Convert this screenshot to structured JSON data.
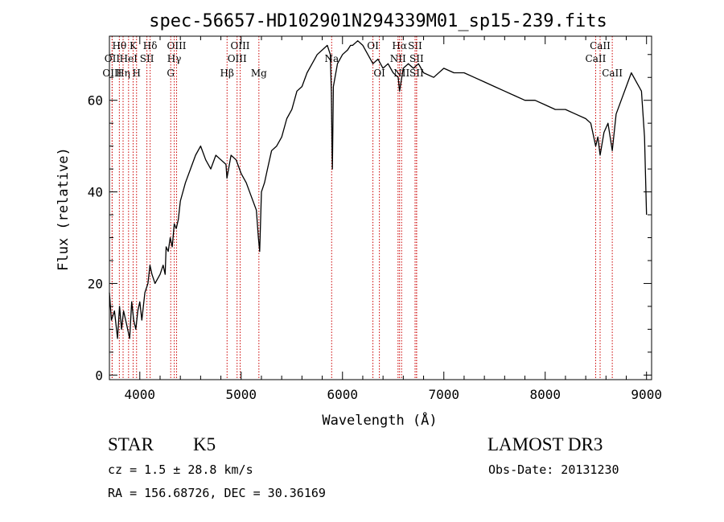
{
  "chart_data": {
    "type": "line",
    "title": "spec-56657-HD102901N294339M01_sp15-239.fits",
    "xlabel": "Wavelength (Å)",
    "ylabel": "Flux (relative)",
    "xlim": [
      3700,
      9050
    ],
    "ylim": [
      -1,
      74
    ],
    "xticks": [
      4000,
      5000,
      6000,
      7000,
      8000,
      9000
    ],
    "yticks": [
      0,
      20,
      40,
      60
    ],
    "series": [
      {
        "color": "#000000",
        "x": [
          3700,
          3720,
          3750,
          3780,
          3800,
          3820,
          3840,
          3860,
          3880,
          3900,
          3920,
          3940,
          3960,
          3980,
          4000,
          4020,
          4050,
          4080,
          4100,
          4120,
          4150,
          4200,
          4230,
          4250,
          4260,
          4280,
          4300,
          4320,
          4340,
          4360,
          4380,
          4400,
          4450,
          4500,
          4550,
          4600,
          4650,
          4700,
          4750,
          4800,
          4850,
          4860,
          4900,
          4950,
          5000,
          5050,
          5100,
          5150,
          5170,
          5183,
          5200,
          5230,
          5260,
          5300,
          5350,
          5400,
          5450,
          5500,
          5550,
          5600,
          5650,
          5700,
          5750,
          5800,
          5850,
          5880,
          5890,
          5896,
          5900,
          5910,
          5950,
          6000,
          6050,
          6080,
          6100,
          6150,
          6200,
          6250,
          6300,
          6350,
          6400,
          6450,
          6500,
          6550,
          6563,
          6600,
          6650,
          6700,
          6750,
          6800,
          6900,
          7000,
          7100,
          7200,
          7300,
          7400,
          7500,
          7600,
          7700,
          7800,
          7900,
          8000,
          8100,
          8200,
          8300,
          8400,
          8450,
          8498,
          8520,
          8542,
          8580,
          8620,
          8662,
          8700,
          8750,
          8800,
          8850,
          8900,
          8950,
          8980,
          9000
        ],
        "y": [
          18,
          12,
          14,
          8,
          15,
          10,
          14,
          12,
          10,
          8,
          16,
          12,
          10,
          14,
          16,
          12,
          18,
          20,
          24,
          22,
          20,
          22,
          24,
          22,
          28,
          27,
          30,
          28,
          33,
          32,
          34,
          38,
          42,
          45,
          48,
          50,
          47,
          45,
          48,
          47,
          46,
          43,
          48,
          47,
          44,
          42,
          39,
          36,
          30,
          27,
          40,
          42,
          45,
          49,
          50,
          52,
          56,
          58,
          62,
          63,
          66,
          68,
          70,
          71,
          72,
          70,
          62,
          50,
          45,
          63,
          68,
          70,
          71,
          72,
          72,
          73,
          72,
          70,
          68,
          69,
          67,
          68,
          66,
          65,
          62,
          67,
          68,
          67,
          68,
          66,
          65,
          67,
          66,
          66,
          65,
          64,
          63,
          62,
          61,
          60,
          60,
          59,
          58,
          58,
          57,
          56,
          55,
          50,
          52,
          48,
          53,
          55,
          49,
          57,
          60,
          63,
          66,
          64,
          62,
          52,
          35
        ]
      }
    ],
    "lines": [
      {
        "label": "Hθ",
        "x": 3798,
        "row": 0
      },
      {
        "label": "OII",
        "x": 3727,
        "row": 1
      },
      {
        "label": "OIII",
        "x": 3727,
        "row": 2
      },
      {
        "label": "Hη",
        "x": 3835,
        "row": 2
      },
      {
        "label": "HeI",
        "x": 3889,
        "row": 1
      },
      {
        "label": "K",
        "x": 3934,
        "row": 0
      },
      {
        "label": "H",
        "x": 3968,
        "row": 2
      },
      {
        "label": "SII",
        "x": 4070,
        "row": 1
      },
      {
        "label": "Hδ",
        "x": 4102,
        "row": 0
      },
      {
        "label": "OIII",
        "x": 4363,
        "row": 0
      },
      {
        "label": "Hγ",
        "x": 4340,
        "row": 1
      },
      {
        "label": "G",
        "x": 4305,
        "row": 2
      },
      {
        "label": "Hβ",
        "x": 4861,
        "row": 2
      },
      {
        "label": "OIII",
        "x": 4990,
        "row": 0
      },
      {
        "label": "OIII",
        "x": 4960,
        "row": 1
      },
      {
        "label": "Mg",
        "x": 5175,
        "row": 2
      },
      {
        "label": "Na",
        "x": 5893,
        "row": 1
      },
      {
        "label": "OI",
        "x": 6300,
        "row": 0
      },
      {
        "label": "OI",
        "x": 6364,
        "row": 2
      },
      {
        "label": "Hα",
        "x": 6563,
        "row": 0
      },
      {
        "label": "NII",
        "x": 6548,
        "row": 1
      },
      {
        "label": "NII",
        "x": 6583,
        "row": 2
      },
      {
        "label": "SII",
        "x": 6716,
        "row": 0
      },
      {
        "label": "SII",
        "x": 6731,
        "row": 1
      },
      {
        "label": "SII",
        "x": 6731,
        "row": 2
      },
      {
        "label": "CaII",
        "x": 8542,
        "row": 0
      },
      {
        "label": "CaII",
        "x": 8498,
        "row": 1
      },
      {
        "label": "CaII",
        "x": 8662,
        "row": 2
      }
    ],
    "line_color": "#cc0000",
    "grid": false
  },
  "info": {
    "object_type": "STAR",
    "subclass": "K5",
    "survey": "LAMOST DR3",
    "redshift": "cz = 1.5 ± 28.8 km/s",
    "obs_date": "Obs-Date: 20131230",
    "coords": "RA = 156.68726, DEC =  30.36169"
  }
}
